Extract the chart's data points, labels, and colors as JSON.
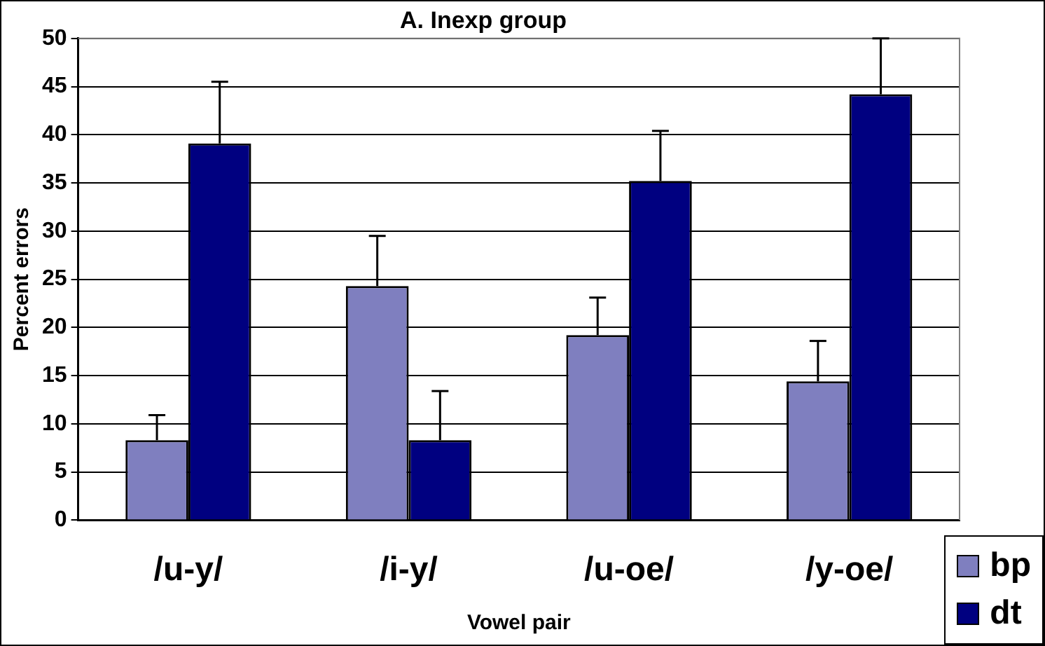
{
  "chart_data": {
    "type": "bar",
    "title": "A. Inexp group",
    "xlabel": "Vowel pair",
    "ylabel": "Percent errors",
    "categories": [
      "/u-y/",
      "/i-y/",
      "/u-oe/",
      "/y-oe/"
    ],
    "series": [
      {
        "name": "bp",
        "color": "#7f7fbf",
        "values": [
          8.3,
          24.3,
          19.2,
          14.4
        ],
        "errors": [
          [
            8.3,
            10.9
          ],
          [
            24.3,
            29.5
          ],
          [
            19.2,
            23.1
          ],
          [
            14.4,
            18.6
          ]
        ]
      },
      {
        "name": "dt",
        "color": "#000080",
        "values": [
          39.1,
          8.3,
          35.2,
          44.2
        ],
        "errors": [
          [
            39.1,
            45.5
          ],
          [
            8.3,
            13.4
          ],
          [
            35.2,
            40.4
          ],
          [
            44.2,
            50
          ]
        ]
      }
    ],
    "ylim": [
      0,
      50
    ],
    "yticks": [
      0,
      5,
      10,
      15,
      20,
      25,
      30,
      35,
      40,
      45,
      50
    ],
    "grid": "y",
    "legend": "bottom right"
  }
}
